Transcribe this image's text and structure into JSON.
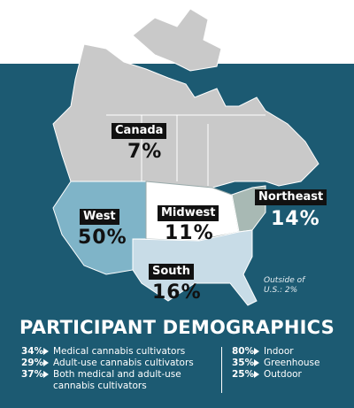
{
  "map": {
    "regions": [
      {
        "name": "Canada",
        "value": "7%"
      },
      {
        "name": "West",
        "value": "50%"
      },
      {
        "name": "Midwest",
        "value": "11%"
      },
      {
        "name": "Northeast",
        "value": "14%"
      },
      {
        "name": "South",
        "value": "16%"
      }
    ],
    "note": "Outside of U.S.: 2%"
  },
  "demographics": {
    "title": "PARTICIPANT DEMOGRAPHICS",
    "cultivator_types": [
      {
        "percent": "34%",
        "label": "Medical cannabis cultivators"
      },
      {
        "percent": "29%",
        "label": "Adult-use cannabis cultivators"
      },
      {
        "percent": "37%",
        "label": "Both medical and adult-use cannabis cultivators"
      }
    ],
    "facility_types": [
      {
        "percent": "80%",
        "label": "Indoor"
      },
      {
        "percent": "35%",
        "label": "Greenhouse"
      },
      {
        "percent": "25%",
        "label": "Outdoor"
      }
    ]
  }
}
